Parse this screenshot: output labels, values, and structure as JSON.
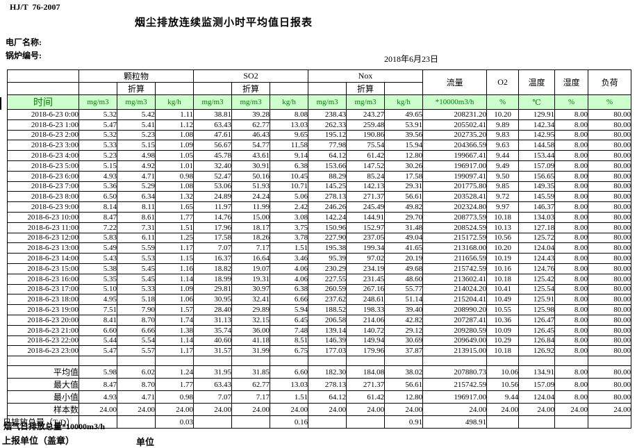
{
  "page": {
    "standard_no": "HJ/T  76-2007",
    "title": "烟尘排放连续监测小时平均值日报表",
    "plant_label": "电厂名称:",
    "boiler_label": "锅炉编号:",
    "date": "2018年6月23日"
  },
  "table": {
    "time_label": "时间",
    "converted_label": "折算",
    "group_labels": [
      "颗粒物",
      "SO2",
      "Nox"
    ],
    "flow_label": "流量",
    "o2_label": "O2",
    "temp_label": "温度",
    "humidity_label": "湿度",
    "load_label": "负荷",
    "units": [
      "mg/m3",
      "mg/m3",
      "kg/h",
      "mg/m3",
      "mg/m3",
      "kg/h",
      "mg/m3",
      "mg/m3",
      "kg/h",
      "*10000m3/h",
      "%",
      "℃",
      "%",
      "%"
    ],
    "rows": [
      {
        "time": "2018-6-23 0:00",
        "v": [
          "5.32",
          "5.42",
          "1.11",
          "38.81",
          "39.28",
          "8.08",
          "238.43",
          "243.27",
          "49.65",
          "208231.20",
          "10.20",
          "129.91",
          "8.00",
          "80.00"
        ]
      },
      {
        "time": "2018-6-23 1:00",
        "v": [
          "5.47",
          "5.41",
          "1.12",
          "63.43",
          "62.77",
          "13.03",
          "262.33",
          "259.48",
          "53.91",
          "205502.41",
          "9.89",
          "142.34",
          "8.00",
          "80.00"
        ]
      },
      {
        "time": "2018-6-23 2:00",
        "v": [
          "5.32",
          "5.23",
          "1.08",
          "47.61",
          "46.43",
          "9.65",
          "195.12",
          "190.86",
          "39.56",
          "202735.20",
          "9.83",
          "142.95",
          "8.00",
          "80.00"
        ]
      },
      {
        "time": "2018-6-23 3:00",
        "v": [
          "5.33",
          "5.15",
          "1.09",
          "56.67",
          "54.77",
          "11.58",
          "77.98",
          "75.54",
          "15.94",
          "204366.59",
          "9.63",
          "144.58",
          "8.00",
          "80.00"
        ]
      },
      {
        "time": "2018-6-23 4:00",
        "v": [
          "5.23",
          "4.98",
          "1.05",
          "45.78",
          "43.61",
          "9.14",
          "64.12",
          "61.42",
          "12.80",
          "199667.41",
          "9.44",
          "153.44",
          "8.00",
          "80.00"
        ]
      },
      {
        "time": "2018-6-23 5:00",
        "v": [
          "5.15",
          "4.92",
          "1.01",
          "32.40",
          "30.91",
          "6.38",
          "153.66",
          "147.52",
          "30.26",
          "196917.00",
          "9.49",
          "157.09",
          "8.00",
          "80.00"
        ]
      },
      {
        "time": "2018-6-23 6:00",
        "v": [
          "4.93",
          "4.71",
          "0.98",
          "52.47",
          "50.16",
          "10.45",
          "88.29",
          "85.24",
          "17.58",
          "199097.41",
          "9.50",
          "156.65",
          "8.00",
          "80.00"
        ]
      },
      {
        "time": "2018-6-23 7:00",
        "v": [
          "5.36",
          "5.29",
          "1.08",
          "53.06",
          "51.93",
          "10.71",
          "145.25",
          "142.13",
          "29.31",
          "201775.80",
          "9.85",
          "149.35",
          "8.00",
          "80.00"
        ]
      },
      {
        "time": "2018-6-23 8:00",
        "v": [
          "6.50",
          "6.34",
          "1.32",
          "24.89",
          "24.24",
          "5.06",
          "278.13",
          "271.37",
          "56.61",
          "203528.41",
          "9.72",
          "145.59",
          "8.00",
          "80.00"
        ]
      },
      {
        "time": "2018-6-23 9:00",
        "v": [
          "8.14",
          "8.11",
          "1.65",
          "11.97",
          "11.99",
          "2.42",
          "246.26",
          "245.49",
          "49.82",
          "202324.80",
          "9.97",
          "146.37",
          "8.00",
          "80.00"
        ]
      },
      {
        "time": "2018-6-23 10:00",
        "v": [
          "8.47",
          "8.61",
          "1.77",
          "14.76",
          "15.00",
          "3.08",
          "142.24",
          "144.91",
          "29.70",
          "208773.59",
          "10.18",
          "134.03",
          "8.00",
          "80.00"
        ]
      },
      {
        "time": "2018-6-23 11:00",
        "v": [
          "7.22",
          "7.31",
          "1.51",
          "17.96",
          "18.17",
          "3.75",
          "150.96",
          "152.97",
          "31.48",
          "208524.59",
          "10.13",
          "127.18",
          "8.00",
          "80.00"
        ]
      },
      {
        "time": "2018-6-23 12:00",
        "v": [
          "5.83",
          "6.11",
          "1.25",
          "17.58",
          "18.26",
          "3.78",
          "227.90",
          "237.05",
          "49.04",
          "215172.59",
          "10.56",
          "125.72",
          "8.00",
          "80.00"
        ]
      },
      {
        "time": "2018-6-23 13:00",
        "v": [
          "5.49",
          "5.59",
          "1.17",
          "7.07",
          "7.17",
          "1.51",
          "195.38",
          "199.34",
          "41.65",
          "213168.00",
          "10.20",
          "124.04",
          "8.00",
          "80.00"
        ]
      },
      {
        "time": "2018-6-23 14:00",
        "v": [
          "5.43",
          "5.53",
          "1.15",
          "16.37",
          "16.64",
          "3.46",
          "95.39",
          "97.02",
          "20.19",
          "211656.59",
          "10.19",
          "124.43",
          "8.00",
          "80.00"
        ]
      },
      {
        "time": "2018-6-23 15:00",
        "v": [
          "5.38",
          "5.45",
          "1.16",
          "18.82",
          "19.07",
          "4.06",
          "230.29",
          "234.19",
          "49.68",
          "215742.59",
          "10.16",
          "124.76",
          "8.00",
          "80.00"
        ]
      },
      {
        "time": "2018-6-23 16:00",
        "v": [
          "5.35",
          "5.45",
          "1.14",
          "18.99",
          "19.31",
          "4.06",
          "227.55",
          "231.45",
          "48.60",
          "213602.41",
          "10.18",
          "125.42",
          "8.00",
          "80.00"
        ]
      },
      {
        "time": "2018-6-23 17:00",
        "v": [
          "5.10",
          "5.33",
          "1.09",
          "29.81",
          "30.97",
          "6.38",
          "260.59",
          "267.16",
          "55.77",
          "214024.20",
          "10.41",
          "125.54",
          "8.00",
          "80.00"
        ]
      },
      {
        "time": "2018-6-23 18:00",
        "v": [
          "4.95",
          "5.18",
          "1.06",
          "30.95",
          "32.41",
          "6.66",
          "237.62",
          "248.61",
          "51.14",
          "215204.41",
          "10.49",
          "125.91",
          "8.00",
          "80.00"
        ]
      },
      {
        "time": "2018-6-23 19:00",
        "v": [
          "7.51",
          "7.90",
          "1.57",
          "28.40",
          "29.89",
          "5.94",
          "188.52",
          "198.33",
          "39.40",
          "208990.20",
          "10.55",
          "125.98",
          "8.00",
          "80.00"
        ]
      },
      {
        "time": "2018-6-23 20:00",
        "v": [
          "8.41",
          "8.70",
          "1.74",
          "31.13",
          "32.15",
          "6.45",
          "206.58",
          "214.06",
          "42.82",
          "207287.41",
          "10.36",
          "126.47",
          "8.00",
          "80.00"
        ]
      },
      {
        "time": "2018-6-23 21:00",
        "v": [
          "6.60",
          "6.66",
          "1.38",
          "35.74",
          "36.00",
          "7.48",
          "139.14",
          "140.72",
          "29.12",
          "209280.59",
          "10.09",
          "126.45",
          "8.00",
          "80.00"
        ]
      },
      {
        "time": "2018-6-23 22:00",
        "v": [
          "5.44",
          "5.54",
          "1.14",
          "40.60",
          "41.18",
          "8.51",
          "146.39",
          "149.94",
          "30.69",
          "209649.00",
          "10.29",
          "126.84",
          "8.00",
          "80.00"
        ]
      },
      {
        "time": "2018-6-23 23:00",
        "v": [
          "5.47",
          "5.57",
          "1.17",
          "31.57",
          "31.99",
          "6.75",
          "177.03",
          "179.96",
          "37.87",
          "213915.00",
          "10.18",
          "126.92",
          "8.00",
          "80.00"
        ]
      }
    ],
    "summary": [
      {
        "label": "平均值",
        "v": [
          "5.98",
          "6.02",
          "1.24",
          "31.95",
          "31.85",
          "6.60",
          "182.30",
          "184.08",
          "38.02",
          "207880.73",
          "10.06",
          "134.91",
          "8.00",
          "80.00"
        ]
      },
      {
        "label": "最大值",
        "v": [
          "8.47",
          "8.70",
          "1.77",
          "63.43",
          "62.77",
          "13.03",
          "278.13",
          "271.37",
          "56.61",
          "215742.59",
          "10.56",
          "157.09",
          "8.00",
          "80.00"
        ]
      },
      {
        "label": "最小值",
        "v": [
          "4.93",
          "4.71",
          "0.98",
          "7.07",
          "7.17",
          "1.51",
          "64.12",
          "61.42",
          "12.80",
          "196917.00",
          "9.44",
          "124.04",
          "8.00",
          "80.00"
        ]
      },
      {
        "label": "样本数",
        "v": [
          "24.00",
          "24.00",
          "24.00",
          "24.00",
          "24.00",
          "24.00",
          "24.00",
          "24.00",
          "24.00",
          "24.00",
          "24.00",
          "24.00",
          "24.00",
          "24.00"
        ]
      }
    ],
    "daily_total": {
      "label": "日排放总量（T/D）",
      "v": [
        "",
        "",
        "0.03",
        "",
        "",
        "0.16",
        "",
        "",
        "0.91",
        "498.91",
        "",
        "",
        "",
        ""
      ]
    }
  },
  "footer": {
    "flue_gas_total": "烟气日排放总量*10000m3/h",
    "report_unit": "上报单位（盖章）",
    "unit": "单位"
  },
  "colors": {
    "header_bg": "#ccffcc",
    "header_text": "#008000",
    "border": "#000000"
  }
}
